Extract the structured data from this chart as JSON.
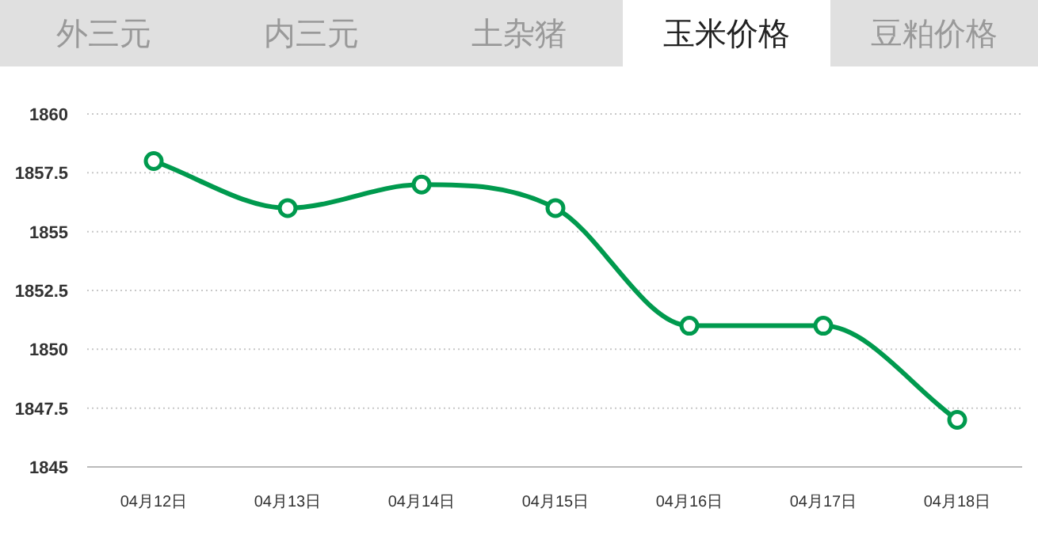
{
  "chart_data": {
    "type": "line",
    "title": "玉米价格",
    "annotations": [
      "外三元",
      "内三元",
      "土杂猪",
      "豆粕价格"
    ],
    "categories": [
      "04月12日",
      "04月13日",
      "04月14日",
      "04月15日",
      "04月16日",
      "04月17日",
      "04月18日"
    ],
    "series": [
      {
        "color": "#009a4e",
        "values": [
          1858,
          1856,
          1857,
          1856,
          1851,
          1851,
          1847
        ]
      }
    ],
    "ylim": [
      1845,
      1860
    ],
    "yticks": [
      1845,
      {
        "value": 1847.5,
        "label": "1847.5"
      },
      1850,
      {
        "value": 1852.5,
        "label": "1852.5"
      },
      1855,
      {
        "value": 1857.5,
        "label": "1857.5"
      },
      1860
    ],
    "grid": "y",
    "marker": "circle",
    "line_style": "solid"
  }
}
